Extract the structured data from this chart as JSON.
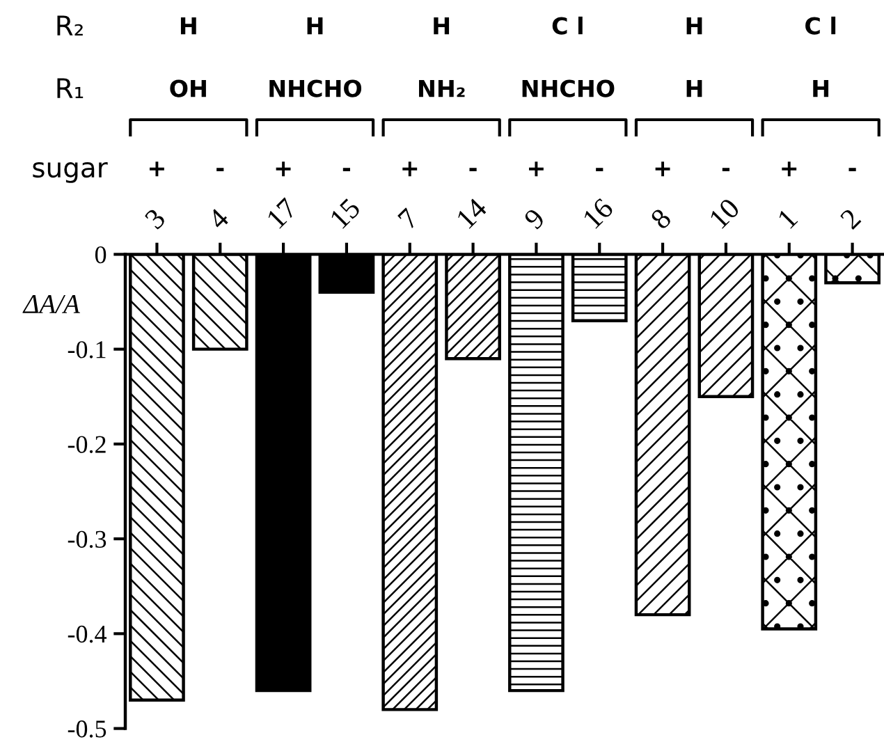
{
  "chart_data": {
    "type": "bar",
    "ylabel": "ΔA/A",
    "categories": [
      "3",
      "4",
      "17",
      "15",
      "7",
      "14",
      "9",
      "16",
      "8",
      "10",
      "1",
      "2"
    ],
    "values": [
      -0.47,
      -0.1,
      -0.46,
      -0.04,
      -0.48,
      -0.11,
      -0.46,
      -0.07,
      -0.38,
      -0.15,
      -0.395,
      -0.03
    ],
    "colors": [
      "#000000",
      "#000000",
      "#000000",
      "#000000",
      "#000000",
      "#000000",
      "#000000",
      "#000000",
      "#000000",
      "#000000",
      "#000000",
      "#000000"
    ],
    "ylim": [
      -0.5,
      0
    ],
    "yticks": [
      0,
      -0.1,
      -0.2,
      -0.3,
      -0.4,
      -0.5
    ],
    "grid": false,
    "annotations": [
      "R₂",
      "H",
      "H",
      "H",
      "C l",
      "H",
      "C l",
      "R₁",
      "OH",
      "NHCHO",
      "NH₂",
      "NHCHO",
      "H",
      "H",
      "sugar",
      "+",
      "-",
      "+",
      "-",
      "+",
      "-",
      "+",
      "-",
      "+",
      "-",
      "+",
      "-"
    ]
  }
}
